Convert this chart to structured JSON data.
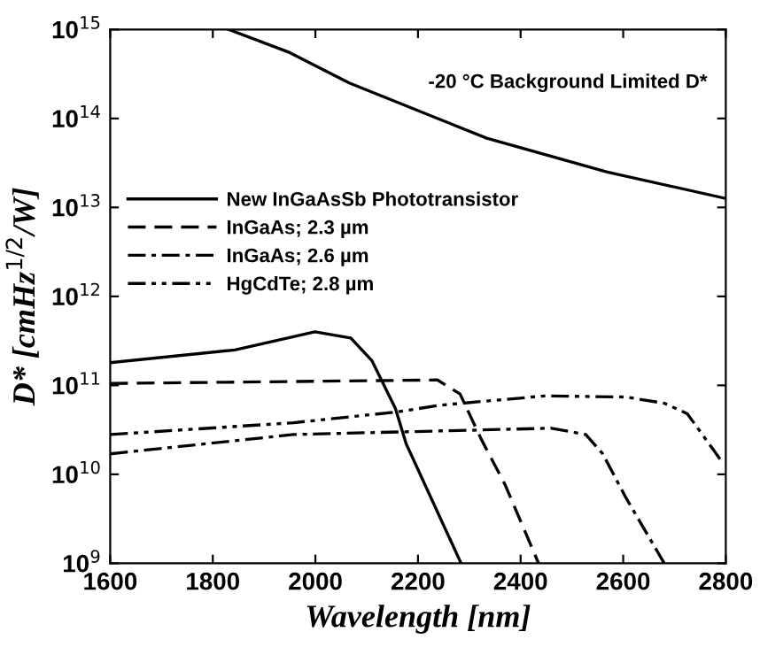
{
  "chart_data": {
    "type": "line",
    "xlabel": "Wavelength [nm]",
    "ylabel": "D* [cmHz$^{1/2}$/W]",
    "log": "y",
    "xlim": [
      1600,
      2800
    ],
    "xticks": [
      1600,
      1800,
      2000,
      2200,
      2400,
      2600,
      2800
    ],
    "ylim": [
      1000000000.0,
      1000000000000000.0
    ],
    "yticks": [
      {
        "value": 1000000000.0,
        "label": "10$^{9}$"
      },
      {
        "value": 10000000000.0,
        "label": "10$^{10}$"
      },
      {
        "value": 100000000000.0,
        "label": "10$^{11}$"
      },
      {
        "value": 1000000000000.0,
        "label": "10$^{12}$"
      },
      {
        "value": 10000000000000.0,
        "label": "10$^{13}$"
      },
      {
        "value": 100000000000000.0,
        "label": "10$^{14}$"
      },
      {
        "value": 1000000000000000.0,
        "label": "10$^{15}$"
      }
    ],
    "grid": false,
    "legend": "left",
    "annotations": [
      "-20 °C Background Limited D*"
    ],
    "series": [
      {
        "name": "New InGaAsSb Phototransistor",
        "color": "#000000",
        "line_style": "solid",
        "x": [
          1600,
          1843,
          1999,
          2069,
          2110,
          2156,
          2177,
          2284
        ],
        "values": [
          180000000000.0,
          250000000000.0,
          400000000000.0,
          340000000000.0,
          190000000000.0,
          55000000000.0,
          22000000000.0,
          1000000000.0
        ]
      },
      {
        "name": "InGaAs; 2.3 µm",
        "color": "#000000",
        "line_style": "dashed",
        "x": [
          1600,
          2238,
          2282,
          2323,
          2370,
          2435
        ],
        "values": [
          105000000000.0,
          115000000000.0,
          80000000000.0,
          25000000000.0,
          7600000000.0,
          1000000000.0
        ]
      },
      {
        "name": "InGaAs; 2.6 µm",
        "color": "#000000",
        "line_style": "dashdot",
        "x": [
          1600,
          1957,
          2460,
          2527,
          2560,
          2605,
          2680
        ],
        "values": [
          17000000000.0,
          28000000000.0,
          33000000000.0,
          28000000000.0,
          17000000000.0,
          5500000000.0,
          1000000000.0
        ]
      },
      {
        "name": "HgCdTe; 2.8 µm",
        "color": "#000000",
        "line_style": "dashdotdot",
        "x": [
          1600,
          1957,
          2156,
          2245,
          2446,
          2605,
          2680,
          2725,
          2792
        ],
        "values": [
          28000000000.0,
          38000000000.0,
          50000000000.0,
          60000000000.0,
          76000000000.0,
          74000000000.0,
          63000000000.0,
          48000000000.0,
          14000000000.0
        ]
      },
      {
        "color": "#000000",
        "line_style": "solid",
        "x": [
          1831,
          1950,
          2066,
          2334,
          2569,
          2800
        ],
        "values": [
          1000000000000000.0,
          550000000000000.0,
          250000000000000.0,
          60000000000000.0,
          25000000000000.0,
          12600000000000.0
        ]
      }
    ]
  }
}
